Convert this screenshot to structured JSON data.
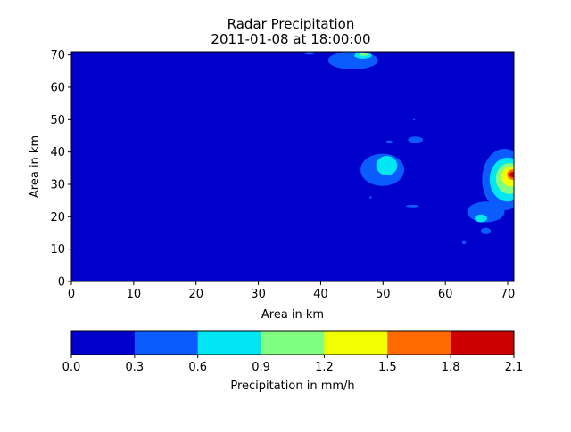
{
  "chart_data": {
    "type": "heatmap",
    "subtype": "filled-contour",
    "title": "Radar Precipitation",
    "subtitle": "2011-01-08 at 18:00:00",
    "xlabel": "Area in km",
    "ylabel": "Area in km",
    "xlim": [
      0,
      71
    ],
    "ylim": [
      0,
      71
    ],
    "xticks": [
      "0",
      "10",
      "20",
      "30",
      "40",
      "50",
      "60",
      "70"
    ],
    "yticks": [
      "0",
      "10",
      "20",
      "30",
      "40",
      "50",
      "60",
      "70"
    ],
    "background_level": 0,
    "colorbar": {
      "label": "Precipitation in mm/h",
      "ticks": [
        "0.0",
        "0.3",
        "0.6",
        "0.9",
        "1.2",
        "1.5",
        "1.8",
        "2.1"
      ],
      "levels": [
        0.0,
        0.3,
        0.6,
        0.9,
        1.2,
        1.5,
        1.8,
        2.1
      ],
      "colors": [
        "#0000cd",
        "#0a5cff",
        "#00e6f2",
        "#80ff80",
        "#f2ff00",
        "#ff6a00",
        "#cc0000"
      ]
    },
    "precipitation_cells": [
      {
        "level": 1,
        "cx": 45.2,
        "cy": 68.3,
        "rx": 4.0,
        "ry": 2.8
      },
      {
        "level": 2,
        "cx": 46.8,
        "cy": 69.8,
        "rx": 1.4,
        "ry": 1.0
      },
      {
        "level": 3,
        "cx": 46.9,
        "cy": 70.2,
        "rx": 0.7,
        "ry": 0.5
      },
      {
        "level": 1,
        "cx": 38.2,
        "cy": 70.5,
        "rx": 0.8,
        "ry": 0.4
      },
      {
        "level": 1,
        "cx": 49.9,
        "cy": 34.5,
        "rx": 3.5,
        "ry": 5.0
      },
      {
        "level": 2,
        "cx": 50.6,
        "cy": 35.8,
        "rx": 1.7,
        "ry": 3.0
      },
      {
        "level": 1,
        "cx": 55.2,
        "cy": 43.8,
        "rx": 1.2,
        "ry": 1.0
      },
      {
        "level": 1,
        "cx": 51.0,
        "cy": 43.2,
        "rx": 0.5,
        "ry": 0.4
      },
      {
        "level": 1,
        "cx": 54.7,
        "cy": 23.3,
        "rx": 1.0,
        "ry": 0.4
      },
      {
        "level": 1,
        "cx": 55.0,
        "cy": 50.0,
        "rx": 0.2,
        "ry": 0.2
      },
      {
        "level": 1,
        "cx": 48.0,
        "cy": 26.0,
        "rx": 0.2,
        "ry": 0.3
      },
      {
        "level": 1,
        "cx": 66.5,
        "cy": 21.5,
        "rx": 3.0,
        "ry": 3.2
      },
      {
        "level": 2,
        "cx": 65.7,
        "cy": 19.5,
        "rx": 1.0,
        "ry": 1.2
      },
      {
        "level": 1,
        "cx": 66.5,
        "cy": 15.6,
        "rx": 0.8,
        "ry": 1.0
      },
      {
        "level": 1,
        "cx": 63.0,
        "cy": 12.0,
        "rx": 0.3,
        "ry": 0.5
      },
      {
        "level": 1,
        "cx": 69.5,
        "cy": 31.5,
        "rx": 3.6,
        "ry": 9.5
      },
      {
        "level": 2,
        "cx": 70.0,
        "cy": 31.5,
        "rx": 2.9,
        "ry": 6.8
      },
      {
        "level": 3,
        "cx": 70.3,
        "cy": 31.8,
        "rx": 2.2,
        "ry": 4.8
      },
      {
        "level": 4,
        "cx": 70.6,
        "cy": 32.4,
        "rx": 1.6,
        "ry": 3.1
      },
      {
        "level": 5,
        "cx": 70.9,
        "cy": 33.0,
        "rx": 1.0,
        "ry": 1.6
      },
      {
        "level": 6,
        "cx": 70.9,
        "cy": 33.0,
        "rx": 0.6,
        "ry": 0.9
      }
    ]
  }
}
